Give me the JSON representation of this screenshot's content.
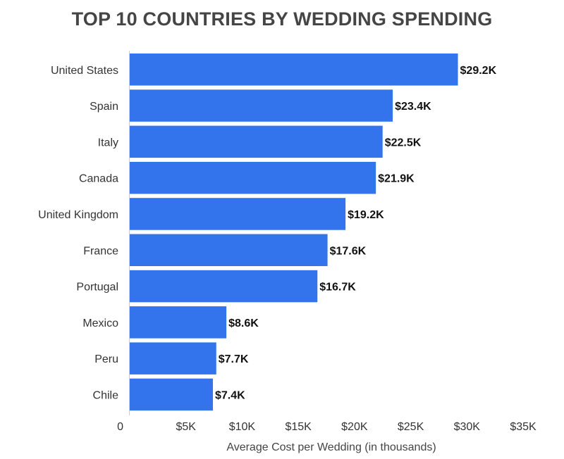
{
  "chart_data": {
    "type": "bar",
    "orientation": "horizontal",
    "title": "TOP 10 COUNTRIES BY WEDDING SPENDING",
    "xlabel": "Average Cost per Wedding (in thousands)",
    "ylabel": "",
    "categories": [
      "United States",
      "Spain",
      "Italy",
      "Canada",
      "United Kingdom",
      "France",
      "Portugal",
      "Mexico",
      "Peru",
      "Chile"
    ],
    "values": [
      29.2,
      23.4,
      22.5,
      21.9,
      19.2,
      17.6,
      16.7,
      8.6,
      7.7,
      7.4
    ],
    "value_labels": [
      "$29.2K",
      "$23.4K",
      "$22.5K",
      "$21.9K",
      "$19.2K",
      "$17.6K",
      "$16.7K",
      "$8.6K",
      "$7.7K",
      "$7.4K"
    ],
    "xlim": [
      0,
      35
    ],
    "x_ticks": [
      0,
      5,
      10,
      15,
      20,
      25,
      30,
      35
    ],
    "x_tick_labels": [
      "0",
      "$5K",
      "$10K",
      "$15K",
      "$20K",
      "$25K",
      "$30K",
      "$35K"
    ],
    "grid": false,
    "legend": "none",
    "colors": {
      "bar": "#3374ec",
      "axis": "#cccccc",
      "title": "#454545"
    }
  }
}
